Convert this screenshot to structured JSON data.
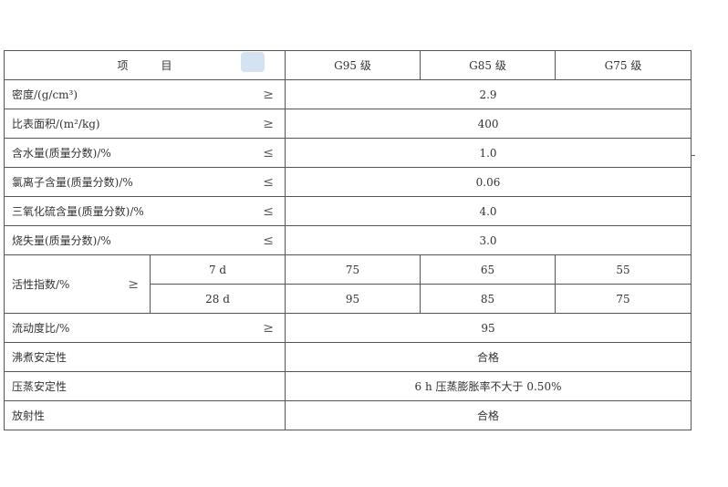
{
  "header": {
    "item": "项　　　目",
    "grades": [
      "G95 级",
      "G85 级",
      "G75 级"
    ]
  },
  "rows": [
    {
      "label": "密度/(g/cm³)",
      "symbol": "≥",
      "value": "2.9"
    },
    {
      "label": "比表面积/(m²/kg)",
      "symbol": "≥",
      "value": "400"
    },
    {
      "label": "含水量(质量分数)/%",
      "symbol": "≤",
      "value": "1.0"
    },
    {
      "label": "氯离子含量(质量分数)/%",
      "symbol": "≤",
      "value": "0.06"
    },
    {
      "label": "三氧化硫含量(质量分数)/%",
      "symbol": "≤",
      "value": "4.0"
    },
    {
      "label": "烧失量(质量分数)/%",
      "symbol": "≤",
      "value": "3.0"
    }
  ],
  "activity": {
    "label": "活性指数/%",
    "symbol": "≥",
    "sub": [
      {
        "age": "7 d",
        "values": [
          "75",
          "65",
          "55"
        ]
      },
      {
        "age": "28 d",
        "values": [
          "95",
          "85",
          "75"
        ]
      }
    ]
  },
  "rows2": [
    {
      "label": "流动度比/%",
      "symbol": "≥",
      "value": "95"
    },
    {
      "label": "沸煮安定性",
      "symbol": "",
      "value": "合格"
    },
    {
      "label": "压蒸安定性",
      "symbol": "",
      "value": "6 h 压蒸膨胀率不大于 0.50%"
    },
    {
      "label": "放射性",
      "symbol": "",
      "value": "合格"
    }
  ]
}
